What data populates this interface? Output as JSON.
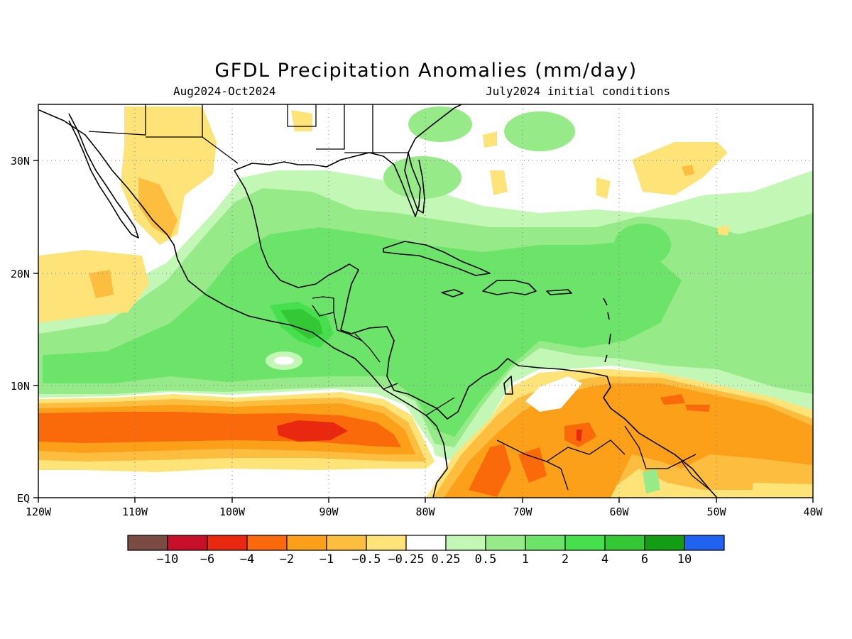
{
  "title": "GFDL Precipitation Anomalies (mm/day)",
  "subtitle_left": "Aug2024-Oct2024",
  "subtitle_right": "July2024 initial conditions",
  "map": {
    "lon_range": [
      -120,
      -40
    ],
    "lat_range": [
      0,
      35
    ],
    "x_ticks": [
      "120W",
      "110W",
      "100W",
      "90W",
      "80W",
      "70W",
      "60W",
      "50W",
      "40W"
    ],
    "y_ticks": [
      "EQ",
      "10N",
      "20N",
      "30N"
    ],
    "grid": "dotted"
  },
  "colorbar": {
    "labels": [
      "-10",
      "-6",
      "-4",
      "-2",
      "-1",
      "-0.5",
      "-0.25",
      "0.25",
      "0.5",
      "1",
      "2",
      "4",
      "6",
      "10"
    ],
    "colors": [
      "#7a4b42",
      "#c8102a",
      "#e8280f",
      "#fa6a0a",
      "#fca01a",
      "#fdbd3e",
      "#fee378",
      "#ffffff",
      "#c2f7b6",
      "#96eb88",
      "#6ce46a",
      "#46df4e",
      "#34c837",
      "#129d14",
      "#2063f0"
    ]
  }
}
